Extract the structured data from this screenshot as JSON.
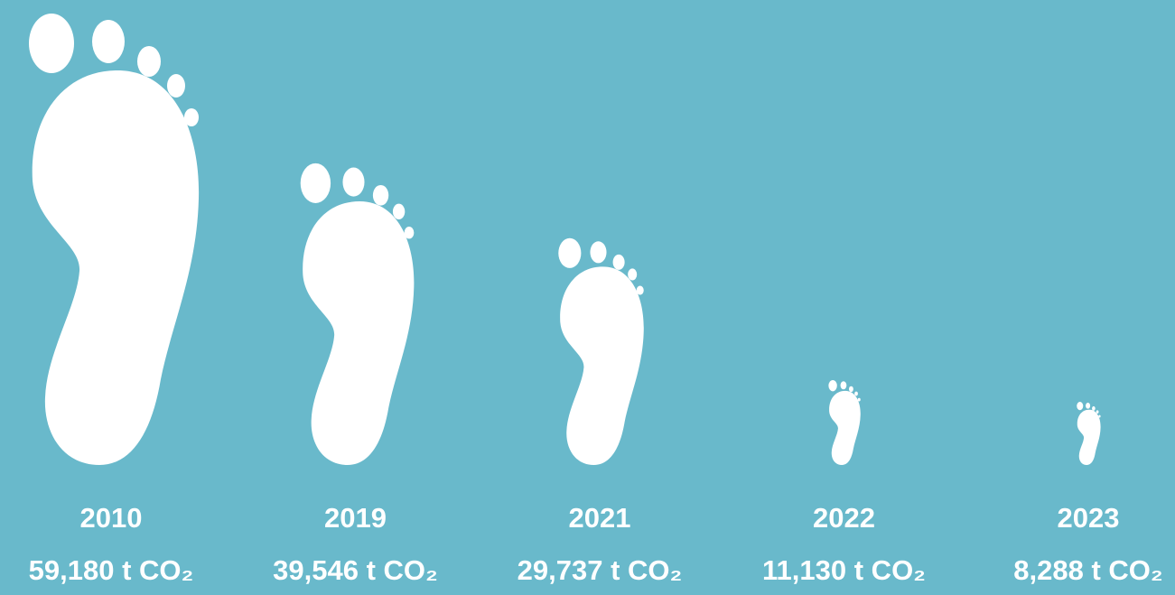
{
  "chart_data": {
    "type": "pictograph",
    "categories": [
      "2010",
      "2019",
      "2021",
      "2022",
      "2023"
    ],
    "values": [
      59180,
      39546,
      29737,
      11130,
      8288
    ],
    "value_labels": [
      "59,180 t CO₂",
      "39,546 t CO₂",
      "29,737 t CO₂",
      "11,130 t CO₂",
      "8,288 t CO₂"
    ],
    "color": "#ffffff"
  }
}
